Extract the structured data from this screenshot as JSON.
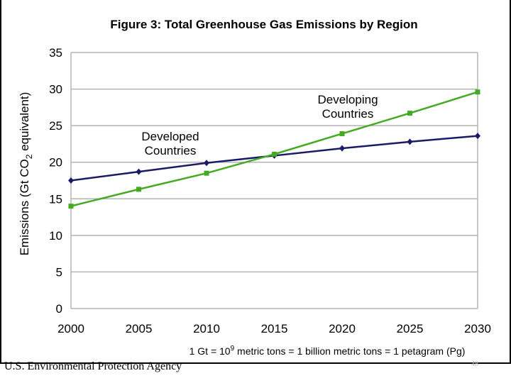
{
  "chart_data": {
    "type": "line",
    "title": "Figure 3: Total Greenhouse Gas Emissions by Region",
    "ylabel_parts": [
      "Emissions (Gt CO",
      "2",
      " equivalent)"
    ],
    "xlabel": "",
    "x": [
      2000,
      2005,
      2010,
      2015,
      2020,
      2025,
      2030
    ],
    "xticks": [
      "2000",
      "2005",
      "2010",
      "2015",
      "2020",
      "2025",
      "2030"
    ],
    "yticks": [
      "0",
      "5",
      "10",
      "15",
      "20",
      "25",
      "30",
      "35"
    ],
    "ylim": [
      0,
      35
    ],
    "grid": "horizontal",
    "series": [
      {
        "name": "Developed Countries",
        "label_lines": [
          "Developed",
          "Countries"
        ],
        "color": "#1a1a66",
        "marker": "diamond",
        "values": [
          17.5,
          18.7,
          19.9,
          20.9,
          21.9,
          22.8,
          23.6
        ]
      },
      {
        "name": "Developing Countries",
        "label_lines": [
          "Developing",
          "Countries"
        ],
        "color": "#44aa22",
        "marker": "square",
        "values": [
          14.0,
          16.3,
          18.5,
          21.1,
          23.9,
          26.7,
          29.6
        ]
      }
    ],
    "note_parts": [
      "1 Gt = 10",
      "9",
      " metric tons = 1 billion metric tons = 1 petagram (Pg)"
    ]
  },
  "footer": "U.S. Environmental Protection Agency",
  "page_number": "48"
}
